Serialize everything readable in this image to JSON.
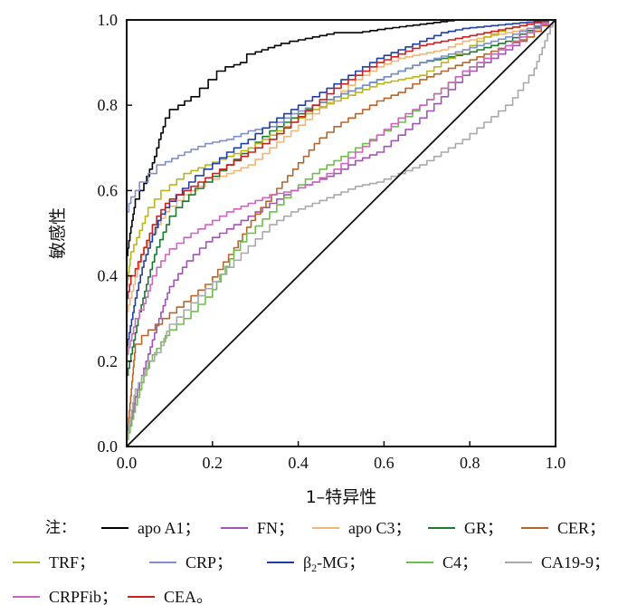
{
  "chart_data": {
    "type": "line",
    "xlabel": "1–特异性",
    "ylabel": "敏感性",
    "xlim": [
      0,
      1
    ],
    "ylim": [
      0,
      1
    ],
    "xticks": [
      "0.0",
      "0.2",
      "0.4",
      "0.6",
      "0.8",
      "1.0"
    ],
    "yticks": [
      "0.0",
      "0.2",
      "0.4",
      "0.6",
      "0.8",
      "1.0"
    ],
    "reference_line": [
      [
        0,
        0
      ],
      [
        1,
        1
      ]
    ],
    "series": [
      {
        "name": "apo A1",
        "color": "#000000",
        "points": [
          [
            0,
            0
          ],
          [
            0,
            0.43
          ],
          [
            0.01,
            0.5
          ],
          [
            0.02,
            0.56
          ],
          [
            0.04,
            0.6
          ],
          [
            0.06,
            0.65
          ],
          [
            0.07,
            0.68
          ],
          [
            0.08,
            0.72
          ],
          [
            0.09,
            0.75
          ],
          [
            0.1,
            0.77
          ],
          [
            0.12,
            0.79
          ],
          [
            0.15,
            0.81
          ],
          [
            0.17,
            0.82
          ],
          [
            0.19,
            0.84
          ],
          [
            0.21,
            0.86
          ],
          [
            0.23,
            0.88
          ],
          [
            0.25,
            0.89
          ],
          [
            0.28,
            0.9
          ],
          [
            0.3,
            0.92
          ],
          [
            0.33,
            0.93
          ],
          [
            0.36,
            0.94
          ],
          [
            0.4,
            0.95
          ],
          [
            0.45,
            0.96
          ],
          [
            0.5,
            0.97
          ],
          [
            0.55,
            0.97
          ],
          [
            0.62,
            0.98
          ],
          [
            0.7,
            0.99
          ],
          [
            0.78,
            1.0
          ],
          [
            1,
            1
          ]
        ]
      },
      {
        "name": "FN",
        "color": "#a055b5",
        "points": [
          [
            0,
            0
          ],
          [
            0.02,
            0.1
          ],
          [
            0.05,
            0.2
          ],
          [
            0.08,
            0.3
          ],
          [
            0.1,
            0.36
          ],
          [
            0.14,
            0.42
          ],
          [
            0.2,
            0.48
          ],
          [
            0.25,
            0.51
          ],
          [
            0.3,
            0.54
          ],
          [
            0.35,
            0.57
          ],
          [
            0.4,
            0.6
          ],
          [
            0.45,
            0.62
          ],
          [
            0.5,
            0.64
          ],
          [
            0.55,
            0.67
          ],
          [
            0.6,
            0.69
          ],
          [
            0.65,
            0.73
          ],
          [
            0.7,
            0.77
          ],
          [
            0.75,
            0.82
          ],
          [
            0.8,
            0.87
          ],
          [
            0.85,
            0.9
          ],
          [
            0.9,
            0.93
          ],
          [
            0.95,
            0.96
          ],
          [
            1,
            1
          ]
        ]
      },
      {
        "name": "apo C3",
        "color": "#f4b575",
        "points": [
          [
            0,
            0
          ],
          [
            0,
            0.3
          ],
          [
            0.02,
            0.38
          ],
          [
            0.04,
            0.45
          ],
          [
            0.06,
            0.48
          ],
          [
            0.08,
            0.52
          ],
          [
            0.1,
            0.55
          ],
          [
            0.15,
            0.59
          ],
          [
            0.2,
            0.62
          ],
          [
            0.25,
            0.64
          ],
          [
            0.3,
            0.66
          ],
          [
            0.35,
            0.7
          ],
          [
            0.4,
            0.74
          ],
          [
            0.45,
            0.78
          ],
          [
            0.5,
            0.82
          ],
          [
            0.55,
            0.86
          ],
          [
            0.6,
            0.89
          ],
          [
            0.65,
            0.91
          ],
          [
            0.7,
            0.92
          ],
          [
            0.75,
            0.93
          ],
          [
            0.8,
            0.95
          ],
          [
            0.85,
            0.96
          ],
          [
            0.9,
            0.97
          ],
          [
            0.95,
            0.98
          ],
          [
            1,
            1
          ]
        ]
      },
      {
        "name": "GR",
        "color": "#1a7a2e",
        "points": [
          [
            0,
            0
          ],
          [
            0,
            0.15
          ],
          [
            0.02,
            0.25
          ],
          [
            0.03,
            0.3
          ],
          [
            0.05,
            0.38
          ],
          [
            0.07,
            0.45
          ],
          [
            0.1,
            0.52
          ],
          [
            0.13,
            0.56
          ],
          [
            0.16,
            0.59
          ],
          [
            0.2,
            0.62
          ],
          [
            0.25,
            0.66
          ],
          [
            0.3,
            0.7
          ],
          [
            0.35,
            0.74
          ],
          [
            0.4,
            0.77
          ],
          [
            0.45,
            0.8
          ],
          [
            0.5,
            0.82
          ],
          [
            0.55,
            0.84
          ],
          [
            0.6,
            0.86
          ],
          [
            0.65,
            0.88
          ],
          [
            0.7,
            0.9
          ],
          [
            0.8,
            0.92
          ],
          [
            0.9,
            0.95
          ],
          [
            1,
            1
          ]
        ]
      },
      {
        "name": "CER",
        "color": "#b8652a",
        "points": [
          [
            0,
            0
          ],
          [
            0.02,
            0.22
          ],
          [
            0.05,
            0.26
          ],
          [
            0.1,
            0.3
          ],
          [
            0.15,
            0.34
          ],
          [
            0.2,
            0.38
          ],
          [
            0.25,
            0.45
          ],
          [
            0.3,
            0.53
          ],
          [
            0.35,
            0.59
          ],
          [
            0.4,
            0.65
          ],
          [
            0.45,
            0.71
          ],
          [
            0.5,
            0.75
          ],
          [
            0.55,
            0.78
          ],
          [
            0.6,
            0.81
          ],
          [
            0.65,
            0.83
          ],
          [
            0.7,
            0.86
          ],
          [
            0.75,
            0.88
          ],
          [
            0.8,
            0.9
          ],
          [
            0.85,
            0.92
          ],
          [
            0.9,
            0.94
          ],
          [
            0.95,
            0.96
          ],
          [
            1,
            1
          ]
        ]
      },
      {
        "name": "TRF",
        "color": "#b8b81c",
        "points": [
          [
            0,
            0
          ],
          [
            0,
            0.36
          ],
          [
            0.01,
            0.44
          ],
          [
            0.03,
            0.49
          ],
          [
            0.05,
            0.54
          ],
          [
            0.08,
            0.58
          ],
          [
            0.1,
            0.6
          ],
          [
            0.15,
            0.64
          ],
          [
            0.2,
            0.66
          ],
          [
            0.25,
            0.68
          ],
          [
            0.3,
            0.7
          ],
          [
            0.35,
            0.73
          ],
          [
            0.4,
            0.76
          ],
          [
            0.45,
            0.79
          ],
          [
            0.5,
            0.81
          ],
          [
            0.55,
            0.83
          ],
          [
            0.6,
            0.85
          ],
          [
            0.65,
            0.86
          ],
          [
            0.7,
            0.87
          ],
          [
            0.75,
            0.9
          ],
          [
            0.8,
            0.93
          ],
          [
            0.85,
            0.96
          ],
          [
            0.9,
            0.98
          ],
          [
            1,
            1
          ]
        ]
      },
      {
        "name": "CRP",
        "color": "#7f8fc8",
        "points": [
          [
            0,
            0
          ],
          [
            0,
            0.53
          ],
          [
            0.01,
            0.57
          ],
          [
            0.03,
            0.6
          ],
          [
            0.05,
            0.62
          ],
          [
            0.07,
            0.64
          ],
          [
            0.09,
            0.66
          ],
          [
            0.15,
            0.69
          ],
          [
            0.2,
            0.71
          ],
          [
            0.25,
            0.72
          ],
          [
            0.3,
            0.74
          ],
          [
            0.35,
            0.75
          ],
          [
            0.4,
            0.78
          ],
          [
            0.5,
            0.82
          ],
          [
            0.6,
            0.86
          ],
          [
            0.7,
            0.9
          ],
          [
            0.8,
            0.93
          ],
          [
            0.9,
            0.96
          ],
          [
            1,
            1
          ]
        ]
      },
      {
        "name": "β2-MG",
        "color": "#1f3ea8",
        "points": [
          [
            0,
            0
          ],
          [
            0,
            0.22
          ],
          [
            0.02,
            0.33
          ],
          [
            0.04,
            0.42
          ],
          [
            0.06,
            0.48
          ],
          [
            0.08,
            0.53
          ],
          [
            0.1,
            0.56
          ],
          [
            0.13,
            0.59
          ],
          [
            0.16,
            0.62
          ],
          [
            0.2,
            0.65
          ],
          [
            0.25,
            0.69
          ],
          [
            0.3,
            0.72
          ],
          [
            0.35,
            0.76
          ],
          [
            0.4,
            0.79
          ],
          [
            0.45,
            0.82
          ],
          [
            0.5,
            0.85
          ],
          [
            0.55,
            0.88
          ],
          [
            0.6,
            0.91
          ],
          [
            0.65,
            0.93
          ],
          [
            0.7,
            0.95
          ],
          [
            0.75,
            0.97
          ],
          [
            0.8,
            0.98
          ],
          [
            0.9,
            0.99
          ],
          [
            1,
            1
          ]
        ]
      },
      {
        "name": "C4",
        "color": "#6cc04a",
        "points": [
          [
            0,
            0
          ],
          [
            0.02,
            0.08
          ],
          [
            0.04,
            0.15
          ],
          [
            0.06,
            0.2
          ],
          [
            0.08,
            0.23
          ],
          [
            0.1,
            0.26
          ],
          [
            0.15,
            0.3
          ],
          [
            0.2,
            0.35
          ],
          [
            0.25,
            0.44
          ],
          [
            0.28,
            0.48
          ],
          [
            0.3,
            0.5
          ],
          [
            0.35,
            0.55
          ],
          [
            0.4,
            0.6
          ],
          [
            0.45,
            0.64
          ],
          [
            0.5,
            0.67
          ],
          [
            0.55,
            0.7
          ],
          [
            0.6,
            0.73
          ],
          [
            0.65,
            0.76
          ],
          [
            0.7,
            0.8
          ],
          [
            0.75,
            0.84
          ],
          [
            0.8,
            0.88
          ],
          [
            0.85,
            0.91
          ],
          [
            0.9,
            0.94
          ],
          [
            0.95,
            0.97
          ],
          [
            1,
            1
          ]
        ]
      },
      {
        "name": "CA19-9",
        "color": "#a9a9a9",
        "points": [
          [
            0,
            0
          ],
          [
            0.02,
            0.12
          ],
          [
            0.05,
            0.18
          ],
          [
            0.08,
            0.22
          ],
          [
            0.1,
            0.27
          ],
          [
            0.15,
            0.32
          ],
          [
            0.2,
            0.37
          ],
          [
            0.25,
            0.42
          ],
          [
            0.3,
            0.47
          ],
          [
            0.35,
            0.52
          ],
          [
            0.4,
            0.55
          ],
          [
            0.45,
            0.57
          ],
          [
            0.5,
            0.59
          ],
          [
            0.55,
            0.61
          ],
          [
            0.6,
            0.62
          ],
          [
            0.65,
            0.64
          ],
          [
            0.7,
            0.66
          ],
          [
            0.75,
            0.69
          ],
          [
            0.8,
            0.72
          ],
          [
            0.85,
            0.76
          ],
          [
            0.9,
            0.8
          ],
          [
            0.95,
            0.87
          ],
          [
            1,
            1
          ]
        ]
      },
      {
        "name": "CRPFib",
        "color": "#d065c0",
        "points": [
          [
            0,
            0
          ],
          [
            0,
            0.2
          ],
          [
            0.02,
            0.28
          ],
          [
            0.04,
            0.32
          ],
          [
            0.06,
            0.38
          ],
          [
            0.08,
            0.42
          ],
          [
            0.1,
            0.45
          ],
          [
            0.15,
            0.49
          ],
          [
            0.2,
            0.52
          ],
          [
            0.25,
            0.55
          ],
          [
            0.3,
            0.57
          ],
          [
            0.35,
            0.59
          ],
          [
            0.4,
            0.6
          ],
          [
            0.45,
            0.62
          ],
          [
            0.5,
            0.65
          ],
          [
            0.55,
            0.69
          ],
          [
            0.6,
            0.73
          ],
          [
            0.65,
            0.77
          ],
          [
            0.7,
            0.8
          ],
          [
            0.75,
            0.84
          ],
          [
            0.8,
            0.88
          ],
          [
            0.85,
            0.91
          ],
          [
            0.9,
            0.94
          ],
          [
            0.95,
            0.97
          ],
          [
            1,
            1
          ]
        ]
      },
      {
        "name": "CEA",
        "color": "#cc1f1f",
        "points": [
          [
            0,
            0
          ],
          [
            0,
            0.33
          ],
          [
            0.01,
            0.38
          ],
          [
            0.02,
            0.4
          ],
          [
            0.04,
            0.45
          ],
          [
            0.06,
            0.5
          ],
          [
            0.08,
            0.54
          ],
          [
            0.1,
            0.57
          ],
          [
            0.15,
            0.6
          ],
          [
            0.2,
            0.63
          ],
          [
            0.25,
            0.66
          ],
          [
            0.3,
            0.69
          ],
          [
            0.35,
            0.72
          ],
          [
            0.4,
            0.76
          ],
          [
            0.45,
            0.8
          ],
          [
            0.5,
            0.84
          ],
          [
            0.55,
            0.87
          ],
          [
            0.6,
            0.9
          ],
          [
            0.65,
            0.92
          ],
          [
            0.7,
            0.94
          ],
          [
            0.75,
            0.95
          ],
          [
            0.8,
            0.96
          ],
          [
            0.9,
            0.98
          ],
          [
            1,
            1
          ]
        ]
      }
    ]
  },
  "legend": {
    "note": "注：",
    "rows": [
      [
        {
          "label": "apo A1；",
          "color": "#000000"
        },
        {
          "label": "FN；",
          "color": "#a055b5"
        },
        {
          "label": "apo C3；",
          "color": "#f4b575"
        },
        {
          "label": "GR；",
          "color": "#1a7a2e"
        },
        {
          "label": "CER；",
          "color": "#b8652a"
        }
      ],
      [
        {
          "label": "TRF；",
          "color": "#b8b81c"
        },
        {
          "label": "CRP；",
          "color": "#7f8fc8"
        },
        {
          "label": "β",
          "sub": "2",
          "suffix": "-MG；",
          "color": "#1f3ea8"
        },
        {
          "label": "C4；",
          "color": "#6cc04a"
        },
        {
          "label": "CA19-9；",
          "color": "#a9a9a9"
        }
      ],
      [
        {
          "label": "CRPFib；",
          "color": "#d065c0"
        },
        {
          "label": "CEA。",
          "color": "#cc1f1f"
        }
      ]
    ]
  }
}
